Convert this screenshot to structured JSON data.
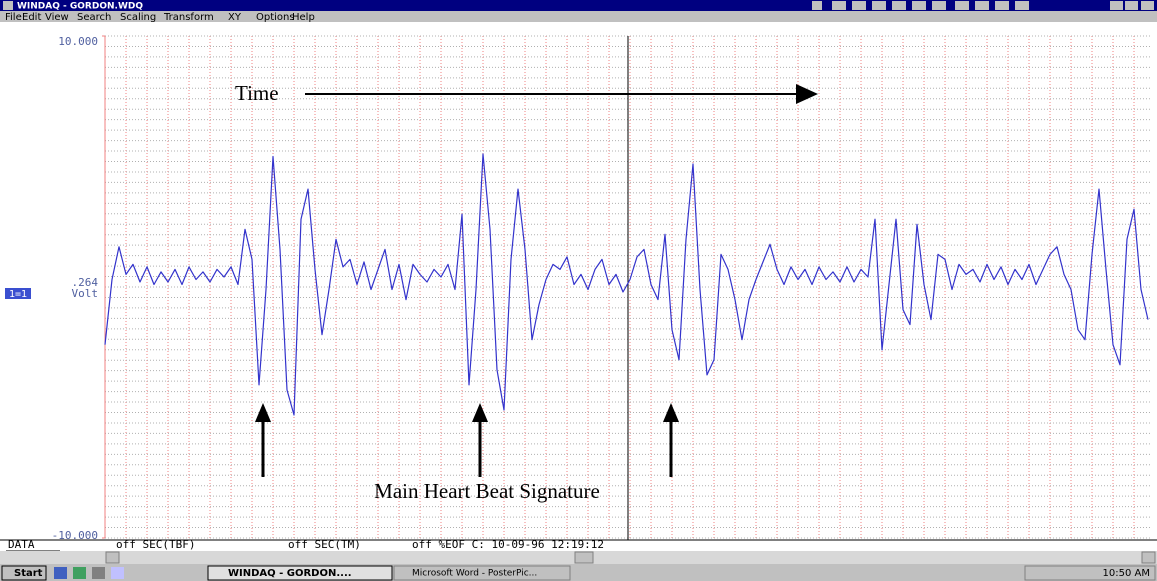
{
  "window": {
    "title": "WINDAQ - GORDON.WDQ"
  },
  "menu": [
    "File",
    "Edit",
    "View",
    "Search",
    "Scaling",
    "Transform",
    "XY",
    "Options",
    "Help"
  ],
  "chart_data": {
    "type": "line",
    "ylim": [
      -10,
      10
    ],
    "yticks": [
      {
        "value": 10,
        "label": "10.000"
      },
      {
        "value": -10,
        "label": "-10.000"
      }
    ],
    "color": "#3333cc",
    "values": [
      -2.3,
      0.3,
      1.6,
      0.5,
      0.9,
      0.2,
      0.8,
      0.1,
      0.6,
      0.2,
      0.7,
      0.1,
      0.8,
      0.3,
      0.6,
      0.2,
      0.7,
      0.4,
      0.8,
      0.1,
      2.3,
      1.1,
      -3.9,
      -0.1,
      5.2,
      1.5,
      -4.1,
      -5.1,
      2.7,
      3.9,
      0.7,
      -1.9,
      -0.1,
      1.9,
      0.8,
      1.1,
      0.1,
      1.0,
      -0.1,
      0.7,
      1.5,
      -0.1,
      0.9,
      -0.5,
      0.9,
      0.5,
      0.2,
      0.7,
      0.4,
      0.9,
      -0.1,
      2.9,
      -3.9,
      -0.1,
      5.3,
      2.3,
      -3.3,
      -4.9,
      1.1,
      3.9,
      1.5,
      -2.1,
      -0.7,
      0.3,
      0.9,
      0.7,
      1.2,
      0.1,
      0.5,
      -0.1,
      0.7,
      1.1,
      0.1,
      0.5,
      -0.2,
      0.3,
      1.2,
      1.5,
      0.1,
      -0.5,
      2.1,
      -1.7,
      -2.9,
      1.9,
      4.9,
      -0.1,
      -3.5,
      -2.9,
      1.3,
      0.7,
      -0.5,
      -2.1,
      -0.5,
      0.3,
      1.0,
      1.7,
      0.7,
      0.1,
      0.8,
      0.3,
      0.7,
      0.1,
      0.8,
      0.3,
      0.6,
      0.2,
      0.8,
      0.2,
      0.7,
      0.4,
      2.7,
      -2.5,
      0.1,
      2.7,
      -0.9,
      -1.5,
      2.5,
      0.1,
      -1.3,
      1.3,
      1.1,
      -0.1,
      0.9,
      0.5,
      0.7,
      0.2,
      0.9,
      0.3,
      0.8,
      0.1,
      0.7,
      0.3,
      0.9,
      0.1,
      0.7,
      1.3,
      1.6,
      0.5,
      -0.1,
      -1.7,
      -2.1,
      1.3,
      3.9,
      0.7,
      -2.3,
      -3.1,
      1.9,
      3.1,
      -0.1,
      -1.3
    ],
    "channel": {
      "id": "1=1",
      "reading": ".264",
      "unit": "Volt"
    },
    "annotations": {
      "time": "Time",
      "signature": "Main Heart Beat Signature"
    }
  },
  "status": [
    "DATA",
    "off SEC(TBF)",
    "off SEC(TM)",
    "off %EOF C: 10-09-96 12:19:12"
  ],
  "taskbar": {
    "start": "Start",
    "tasks": [
      "WINDAQ - GORDON....",
      "Microsoft Word - PosterPic..."
    ],
    "clock": "10:50 AM"
  }
}
